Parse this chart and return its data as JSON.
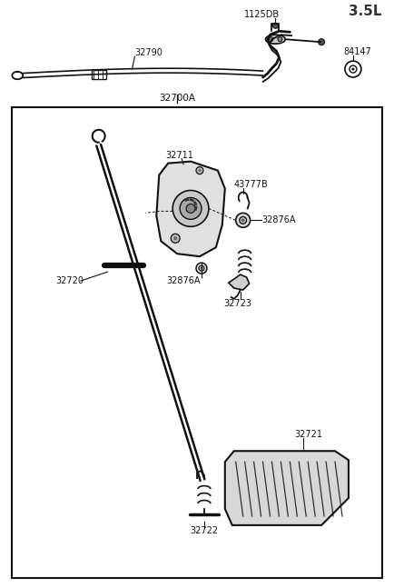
{
  "title": "3.5L",
  "bg_color": "#ffffff",
  "line_color": "#111111",
  "text_color": "#111111",
  "labels": {
    "top_right": "3.5L",
    "cable_label": "32790",
    "clip_label": "1125DB",
    "grommet_label": "84147",
    "assy_label": "32700A",
    "bracket_label": "32711",
    "spring_clip_label": "43777B",
    "bolt1_label": "32876A",
    "bolt2_label": "32876A",
    "link_label": "32723",
    "rod_label": "32720",
    "pedal_pad_label": "32721",
    "spring_label": "32722"
  },
  "figsize": [
    4.34,
    6.47
  ],
  "dpi": 100
}
